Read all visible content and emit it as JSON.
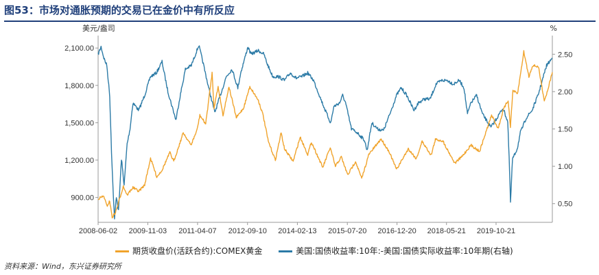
{
  "title": "图53：市场对通胀预期的交易已在金价中有所反应",
  "source": "资料来源：Wind，东兴证券研究所",
  "chart_data": {
    "type": "line",
    "left_unit": "美元/盎司",
    "right_unit": "%",
    "x_ticks": [
      "2008-06-02",
      "2009-11-03",
      "2011-04-07",
      "2012-09-10",
      "2014-02-13",
      "2015-07-20",
      "2016-12-20",
      "2018-05-21",
      "2019-10-21"
    ],
    "x_range": [
      "2008-06-02",
      "2021-05-31"
    ],
    "ylim_left": [
      700,
      2200
    ],
    "yticks_left": [
      "900.00",
      "1,200.00",
      "1,500.00",
      "1,800.00",
      "2,100.00"
    ],
    "ylim_right": [
      0.25,
      2.75
    ],
    "yticks_right": [
      "0.50",
      "1.00",
      "1.50",
      "2.00",
      "2.50"
    ],
    "legend_position": "bottom",
    "grid": false,
    "series": [
      {
        "name": "期货收盘价(活跃合约):COMEX黄金",
        "color": "#f0a32b",
        "axis": "left",
        "points": [
          [
            "2008-06-02",
            890
          ],
          [
            "2008-08-01",
            910
          ],
          [
            "2008-09-01",
            830
          ],
          [
            "2008-10-01",
            870
          ],
          [
            "2008-10-27",
            740
          ],
          [
            "2008-12-01",
            780
          ],
          [
            "2009-01-02",
            860
          ],
          [
            "2009-02-20",
            990
          ],
          [
            "2009-04-01",
            920
          ],
          [
            "2009-06-01",
            980
          ],
          [
            "2009-08-01",
            950
          ],
          [
            "2009-10-01",
            1000
          ],
          [
            "2009-12-02",
            1215
          ],
          [
            "2010-02-05",
            1065
          ],
          [
            "2010-04-01",
            1120
          ],
          [
            "2010-06-21",
            1260
          ],
          [
            "2010-08-01",
            1190
          ],
          [
            "2010-11-09",
            1420
          ],
          [
            "2011-01-28",
            1320
          ],
          [
            "2011-04-01",
            1440
          ],
          [
            "2011-05-01",
            1560
          ],
          [
            "2011-07-01",
            1490
          ],
          [
            "2011-09-06",
            1900
          ],
          [
            "2011-09-26",
            1620
          ],
          [
            "2011-11-08",
            1790
          ],
          [
            "2011-12-29",
            1560
          ],
          [
            "2012-02-29",
            1790
          ],
          [
            "2012-05-16",
            1540
          ],
          [
            "2012-08-01",
            1620
          ],
          [
            "2012-10-04",
            1790
          ],
          [
            "2013-01-01",
            1680
          ],
          [
            "2013-02-20",
            1560
          ],
          [
            "2013-04-15",
            1350
          ],
          [
            "2013-06-28",
            1200
          ],
          [
            "2013-08-27",
            1420
          ],
          [
            "2013-10-01",
            1290
          ],
          [
            "2013-12-31",
            1190
          ],
          [
            "2014-03-14",
            1385
          ],
          [
            "2014-06-01",
            1245
          ],
          [
            "2014-07-10",
            1345
          ],
          [
            "2014-11-05",
            1140
          ],
          [
            "2015-01-22",
            1300
          ],
          [
            "2015-03-17",
            1150
          ],
          [
            "2015-05-18",
            1225
          ],
          [
            "2015-07-24",
            1080
          ],
          [
            "2015-10-14",
            1190
          ],
          [
            "2015-12-17",
            1050
          ],
          [
            "2016-03-01",
            1245
          ],
          [
            "2016-07-06",
            1370
          ],
          [
            "2016-10-01",
            1265
          ],
          [
            "2016-12-15",
            1125
          ],
          [
            "2017-04-17",
            1290
          ],
          [
            "2017-07-10",
            1210
          ],
          [
            "2017-09-08",
            1350
          ],
          [
            "2017-12-12",
            1240
          ],
          [
            "2018-01-25",
            1365
          ],
          [
            "2018-04-11",
            1355
          ],
          [
            "2018-08-16",
            1175
          ],
          [
            "2018-11-01",
            1230
          ],
          [
            "2019-01-31",
            1320
          ],
          [
            "2019-05-01",
            1270
          ],
          [
            "2019-09-04",
            1560
          ],
          [
            "2019-11-12",
            1455
          ],
          [
            "2020-01-08",
            1610
          ],
          [
            "2020-02-24",
            1680
          ],
          [
            "2020-03-19",
            1470
          ],
          [
            "2020-04-14",
            1760
          ],
          [
            "2020-06-01",
            1730
          ],
          [
            "2020-08-06",
            2070
          ],
          [
            "2020-09-28",
            1870
          ],
          [
            "2020-11-06",
            1960
          ],
          [
            "2021-01-05",
            1950
          ],
          [
            "2021-03-08",
            1680
          ],
          [
            "2021-04-01",
            1730
          ],
          [
            "2021-05-31",
            1905
          ]
        ]
      },
      {
        "name": "美国:国债收益率:10年:-美国:国债实际收益率:10年期(右轴)",
        "color": "#2b7aa6",
        "axis": "right",
        "points": [
          [
            "2008-06-02",
            2.5
          ],
          [
            "2008-07-03",
            2.6
          ],
          [
            "2008-08-01",
            2.45
          ],
          [
            "2008-09-01",
            2.35
          ],
          [
            "2008-10-01",
            1.95
          ],
          [
            "2008-10-20",
            1.2
          ],
          [
            "2008-11-03",
            0.75
          ],
          [
            "2008-11-20",
            0.28
          ],
          [
            "2008-12-10",
            0.6
          ],
          [
            "2009-01-01",
            0.4
          ],
          [
            "2009-02-01",
            1.1
          ],
          [
            "2009-03-01",
            0.75
          ],
          [
            "2009-04-01",
            1.3
          ],
          [
            "2009-05-01",
            1.5
          ],
          [
            "2009-06-01",
            1.85
          ],
          [
            "2009-08-01",
            1.75
          ],
          [
            "2009-10-01",
            1.95
          ],
          [
            "2009-12-01",
            2.2
          ],
          [
            "2010-02-01",
            2.25
          ],
          [
            "2010-04-01",
            2.4
          ],
          [
            "2010-06-01",
            2.0
          ],
          [
            "2010-08-24",
            1.62
          ],
          [
            "2010-10-01",
            1.9
          ],
          [
            "2010-12-01",
            2.3
          ],
          [
            "2011-02-01",
            2.35
          ],
          [
            "2011-04-20",
            2.62
          ],
          [
            "2011-06-01",
            2.4
          ],
          [
            "2011-08-01",
            2.05
          ],
          [
            "2011-10-04",
            1.72
          ],
          [
            "2011-12-01",
            1.95
          ],
          [
            "2012-02-01",
            2.2
          ],
          [
            "2012-04-01",
            2.3
          ],
          [
            "2012-06-01",
            2.05
          ],
          [
            "2012-07-01",
            2.25
          ],
          [
            "2012-09-14",
            2.6
          ],
          [
            "2012-10-15",
            2.5
          ],
          [
            "2013-01-01",
            2.55
          ],
          [
            "2013-03-01",
            2.5
          ],
          [
            "2013-04-01",
            2.38
          ],
          [
            "2013-06-01",
            2.2
          ],
          [
            "2013-08-01",
            2.2
          ],
          [
            "2013-10-01",
            2.15
          ],
          [
            "2013-12-01",
            2.25
          ],
          [
            "2014-02-01",
            2.18
          ],
          [
            "2014-04-01",
            2.2
          ],
          [
            "2014-06-01",
            2.25
          ],
          [
            "2014-08-01",
            2.15
          ],
          [
            "2014-10-01",
            1.95
          ],
          [
            "2014-12-01",
            1.75
          ],
          [
            "2015-01-27",
            1.58
          ],
          [
            "2015-03-01",
            1.8
          ],
          [
            "2015-05-01",
            1.85
          ],
          [
            "2015-06-01",
            1.95
          ],
          [
            "2015-07-01",
            1.85
          ],
          [
            "2015-09-01",
            1.5
          ],
          [
            "2015-11-01",
            1.45
          ],
          [
            "2016-01-15",
            1.35
          ],
          [
            "2016-02-11",
            1.21
          ],
          [
            "2016-04-01",
            1.58
          ],
          [
            "2016-06-01",
            1.5
          ],
          [
            "2016-08-01",
            1.48
          ],
          [
            "2016-10-01",
            1.68
          ],
          [
            "2016-12-15",
            1.95
          ],
          [
            "2017-02-01",
            2.05
          ],
          [
            "2017-04-01",
            1.95
          ],
          [
            "2017-06-15",
            1.75
          ],
          [
            "2017-08-01",
            1.85
          ],
          [
            "2017-10-01",
            1.9
          ],
          [
            "2017-12-01",
            1.9
          ],
          [
            "2018-02-01",
            2.1
          ],
          [
            "2018-04-01",
            2.15
          ],
          [
            "2018-06-01",
            2.15
          ],
          [
            "2018-08-01",
            2.1
          ],
          [
            "2018-10-01",
            2.15
          ],
          [
            "2018-11-20",
            2.05
          ],
          [
            "2018-12-26",
            1.7
          ],
          [
            "2019-02-01",
            1.85
          ],
          [
            "2019-04-01",
            1.95
          ],
          [
            "2019-06-01",
            1.7
          ],
          [
            "2019-08-28",
            1.52
          ],
          [
            "2019-11-01",
            1.65
          ],
          [
            "2020-01-01",
            1.78
          ],
          [
            "2020-02-20",
            1.6
          ],
          [
            "2020-03-10",
            0.95
          ],
          [
            "2020-03-20",
            0.52
          ],
          [
            "2020-04-10",
            1.1
          ],
          [
            "2020-05-01",
            1.15
          ],
          [
            "2020-06-01",
            1.25
          ],
          [
            "2020-07-01",
            1.45
          ],
          [
            "2020-09-01",
            1.65
          ],
          [
            "2020-11-01",
            1.75
          ],
          [
            "2021-01-01",
            1.95
          ],
          [
            "2021-02-15",
            2.15
          ],
          [
            "2021-04-01",
            2.35
          ],
          [
            "2021-05-31",
            2.45
          ]
        ]
      }
    ]
  }
}
